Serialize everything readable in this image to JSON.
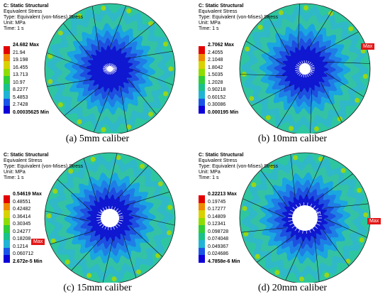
{
  "colors": [
    "#e30000",
    "#f08a00",
    "#d9d200",
    "#8fdc00",
    "#2fcd38",
    "#18c28a",
    "#1fb4d6",
    "#1a55e8",
    "#0d00d9"
  ],
  "panels": [
    {
      "header": {
        "title": "C: Static Structural",
        "result": "Equivalent Stress",
        "type": "Type: Equivalent (von-Mises) Stress",
        "unit": "Unit: MPa",
        "time": "Time: 1 s"
      },
      "legend": [
        "24.682 Max",
        "21.94",
        "19.198",
        "16.455",
        "13.713",
        "10.97",
        "8.2277",
        "5.4853",
        "2.7428",
        "0.00035625 Min"
      ],
      "caption": "(a) 5mm caliber",
      "hole_radius": 4,
      "max_tag": "",
      "min_tag": ""
    },
    {
      "header": {
        "title": "C: Static Structural",
        "result": "Equivalent Stress",
        "type": "Type: Equivalent (von-Mises) Stress",
        "unit": "Unit: MPa",
        "time": "Time: 1 s"
      },
      "legend": [
        "2.7062 Max",
        "2.4055",
        "2.1048",
        "1.8042",
        "1.5035",
        "1.2028",
        "0.90218",
        "0.60152",
        "0.30086",
        "0.000195 Min"
      ],
      "caption": "(b) 10mm caliber",
      "hole_radius": 8,
      "max_tag": "Max",
      "min_tag": "Min"
    },
    {
      "header": {
        "title": "C: Static Structural",
        "result": "Equivalent Stress",
        "type": "Type: Equivalent (von-Mises) Stress",
        "unit": "Unit: MPa",
        "time": "Time: 1 s"
      },
      "legend": [
        "0.54619 Max",
        "0.48551",
        "0.42482",
        "0.36414",
        "0.30345",
        "0.24277",
        "0.18208",
        "0.1214",
        "0.060712",
        "2.672e-5 Min"
      ],
      "caption": "(c) 15mm caliber",
      "hole_radius": 13,
      "max_tag": "Max",
      "min_tag": "Min"
    },
    {
      "header": {
        "title": "C: Static Structural",
        "result": "Equivalent Stress",
        "type": "Type: Equivalent (von-Mises) Stress",
        "unit": "Unit: MPa",
        "time": "Time: 1 s"
      },
      "legend": [
        "0.22213 Max",
        "0.19745",
        "0.17277",
        "0.14809",
        "0.12341",
        "0.098728",
        "0.074048",
        "0.049367",
        "0.024686",
        "4.7858e-6 Min"
      ],
      "caption": "(d) 20mm caliber",
      "hole_radius": 18,
      "max_tag": "Max",
      "min_tag": "Min"
    }
  ]
}
